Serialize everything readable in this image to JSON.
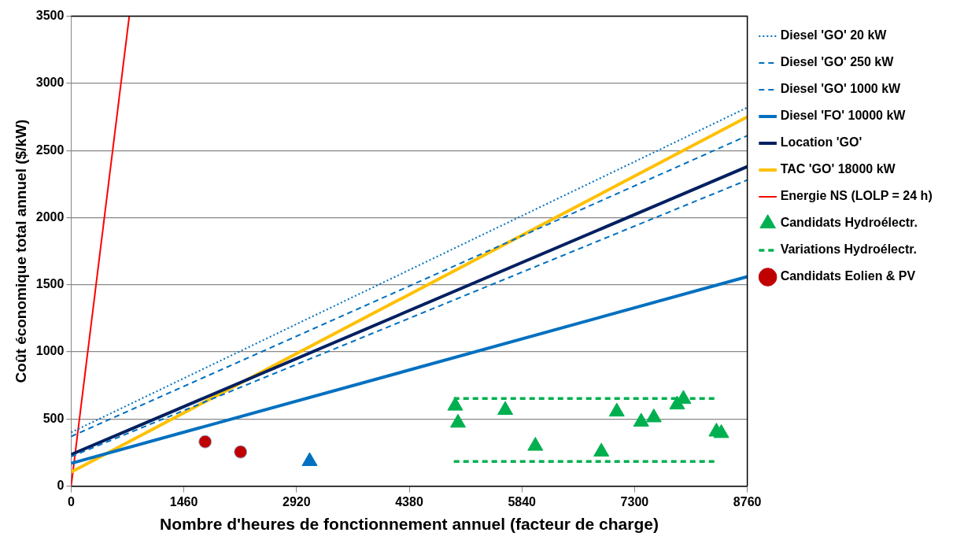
{
  "chart_data": {
    "type": "line",
    "xlabel": "Nombre d'heures de fonctionnement annuel (facteur de charge)",
    "ylabel": "Coût économique total annuel ($/kW)",
    "xlim": [
      0,
      8760
    ],
    "xticks": [
      0,
      1460,
      2920,
      4380,
      5840,
      7300,
      8760
    ],
    "ylim": [
      0,
      3500
    ],
    "yticks": [
      0,
      500,
      1000,
      1500,
      2000,
      2500,
      3000,
      3500
    ],
    "grid": "y",
    "legend": "right",
    "series": [
      {
        "name": "Diesel 'GO' 20 kW",
        "type": "line",
        "line_style": "dotted",
        "marker": "none",
        "color": "#0070c0",
        "x": [
          0,
          8760
        ],
        "values": [
          400,
          2820
        ]
      },
      {
        "name": "Diesel 'GO' 250 kW",
        "type": "line",
        "line_style": "dashed",
        "marker": "none",
        "color": "#0070c0",
        "x": [
          0,
          8760
        ],
        "values": [
          370,
          2610
        ]
      },
      {
        "name": "Diesel 'GO' 1000 kW",
        "type": "line",
        "line_style": "dashed",
        "marker": "none",
        "color": "#0070c0",
        "x": [
          0,
          8760
        ],
        "values": [
          220,
          2280
        ]
      },
      {
        "name": "Diesel 'FO' 10000 kW",
        "type": "line",
        "line_style": "solid",
        "marker": "none",
        "color": "#0070c0",
        "x": [
          0,
          8760
        ],
        "values": [
          170,
          1560
        ]
      },
      {
        "name": "Location 'GO'",
        "type": "line",
        "line_style": "solid",
        "marker": "none",
        "color": "#002060",
        "x": [
          0,
          8760
        ],
        "values": [
          235,
          2380
        ]
      },
      {
        "name": "TAC 'GO' 18000 kW",
        "type": "line",
        "line_style": "solid",
        "marker": "none",
        "color": "#ffc000",
        "x": [
          0,
          8760
        ],
        "values": [
          105,
          2750
        ]
      },
      {
        "name": "Energie NS (LOLP = 24 h)",
        "type": "line",
        "line_style": "solid",
        "marker": "none",
        "color": "#ff0000",
        "x": [
          0,
          753
        ],
        "values": [
          0,
          3500
        ]
      },
      {
        "name": "Candidats Hydroélectr.",
        "type": "scatter",
        "marker": "triangle",
        "color": "#00b050",
        "x": [
          4976,
          5012,
          5624,
          6014,
          6869,
          7069,
          7385,
          7549,
          7851,
          7932,
          8360,
          8423
        ],
        "values": [
          598,
          471,
          566,
          299,
          256,
          554,
          479,
          511,
          607,
          649,
          405,
          394
        ]
      },
      {
        "name": "Variations Hydroélectr.",
        "line_style": "dashed",
        "marker": "none",
        "color": "#00b050",
        "x": [
          4958,
          8371
        ],
        "values": [
          653,
          653
        ]
      },
      {
        "line_style": "dashed",
        "marker": "none",
        "color": "#00b050",
        "x": [
          4958,
          8371
        ],
        "values": [
          184,
          184
        ]
      },
      {
        "name": "Candidats Eolien & PV",
        "type": "scatter",
        "marker": "circle",
        "color": "#c00000",
        "x": [
          1736,
          2195
        ],
        "values": [
          331,
          255
        ]
      },
      {
        "type": "scatter",
        "marker": "triangle",
        "color": "#0070c0",
        "x": [
          3090
        ],
        "values": [
          185
        ]
      }
    ]
  }
}
